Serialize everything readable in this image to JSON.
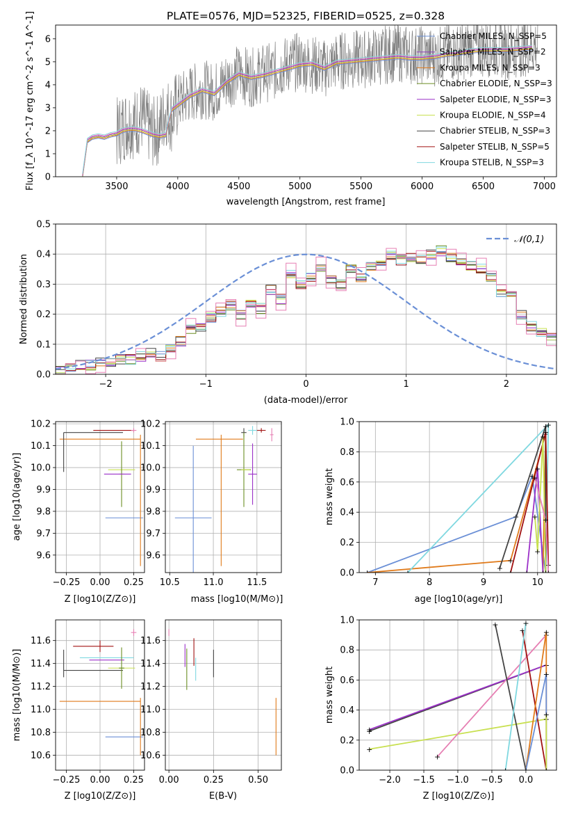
{
  "title": "PLATE=0576, MJD=52325, FIBERID=0525, z=0.328",
  "colors": {
    "Chabrier MILES": "#6a8fd6",
    "Salpeter MILES": "#8c3fb8",
    "Kroupa MILES": "#e07a1a",
    "Chabrier ELODIE": "#6b8e23",
    "Salpeter ELODIE": "#9b30c8",
    "Kroupa ELODIE": "#c8e050",
    "Chabrier STELIB": "#444444",
    "Salpeter STELIB": "#a01010",
    "Kroupa STELIB": "#7fd8e0",
    "Pink": "#e67fb3",
    "Spectrum": "#808080"
  },
  "chart_data": [
    {
      "type": "line",
      "title": "PLATE=0576, MJD=52325, FIBERID=0525, z=0.328",
      "xlabel": "wavelength [Angstrom, rest frame]",
      "ylabel": "Flux [f_λ 10^-17 erg cm^-2 s^-1 A^-1]",
      "xlim": [
        3000,
        7100
      ],
      "ylim": [
        0,
        6.6
      ],
      "xticks": [
        3500,
        4000,
        4500,
        5000,
        5500,
        6000,
        6500,
        7000
      ],
      "yticks": [
        0,
        1,
        2,
        3,
        4,
        5,
        6
      ],
      "legend": "top-right",
      "legend_entries": [
        "Chabrier MILES, N_SSP=5",
        "Salpeter MILES, N_SSP=2",
        "Kroupa MILES, N_SSP=3",
        "Chabrier ELODIE, N_SSP=3",
        "Salpeter ELODIE, N_SSP=3",
        "Kroupa ELODIE, N_SSP=4",
        "Chabrier STELIB, N_SSP=3",
        "Salpeter STELIB, N_SSP=5",
        "Kroupa STELIB, N_SSP=3"
      ],
      "spectrum": {
        "x": [
          3220,
          3260,
          3300,
          3350,
          3400,
          3450,
          3500,
          3550,
          3600,
          3650,
          3700,
          3750,
          3800,
          3850,
          3900,
          3950,
          4000,
          4100,
          4200,
          4300,
          4400,
          4500,
          4600,
          4700,
          4800,
          4900,
          5000,
          5100,
          5200,
          5300,
          5400,
          5500,
          5600,
          5700,
          5800,
          5900,
          6000,
          6100,
          6200,
          6300,
          6400,
          6500,
          6600,
          6700,
          6800,
          6900
        ],
        "y": [
          0.0,
          1.5,
          1.7,
          1.75,
          1.7,
          1.8,
          1.85,
          2.2,
          2.4,
          2.3,
          2.6,
          2.2,
          1.9,
          2.1,
          2.9,
          2.6,
          3.2,
          3.6,
          3.8,
          3.7,
          4.2,
          4.5,
          4.3,
          4.5,
          4.6,
          4.9,
          5.0,
          4.9,
          4.7,
          5.0,
          5.1,
          5.1,
          5.2,
          5.3,
          5.4,
          5.3,
          5.3,
          5.2,
          5.4,
          5.4,
          5.6,
          5.6,
          5.6,
          5.5,
          5.6,
          5.7
        ]
      },
      "models": {
        "x": [
          3220,
          3260,
          3300,
          3350,
          3400,
          3450,
          3500,
          3550,
          3600,
          3650,
          3700,
          3750,
          3800,
          3850,
          3900,
          3950,
          4000,
          4100,
          4200,
          4300,
          4400,
          4500,
          4600,
          4700,
          4800,
          4900,
          5000,
          5100,
          5200,
          5300,
          5400,
          5500,
          5600,
          5700,
          5800,
          5900,
          6000,
          6100,
          6200,
          6300,
          6400,
          6500,
          6600,
          6700,
          6800,
          6900
        ],
        "y": [
          0.0,
          1.55,
          1.7,
          1.75,
          1.7,
          1.8,
          1.85,
          2.0,
          2.05,
          2.05,
          2.0,
          1.9,
          1.8,
          1.75,
          1.8,
          2.9,
          3.1,
          3.5,
          3.75,
          3.6,
          4.1,
          4.45,
          4.3,
          4.4,
          4.55,
          4.7,
          4.85,
          4.9,
          4.7,
          4.95,
          5.0,
          5.05,
          5.1,
          5.15,
          5.2,
          5.15,
          5.15,
          5.2,
          5.3,
          5.35,
          5.45,
          5.5,
          5.5,
          5.5,
          5.55,
          5.6
        ]
      }
    },
    {
      "type": "histogram",
      "xlabel": "(data-model)/error",
      "ylabel": "Normed distribution",
      "xlim": [
        -2.5,
        2.5
      ],
      "ylim": [
        0,
        0.5
      ],
      "xticks": [
        -2,
        -1,
        0,
        1,
        2
      ],
      "yticks": [
        0.0,
        0.1,
        0.2,
        0.3,
        0.4,
        0.5
      ],
      "bin_width": 0.1,
      "legend": "top-right",
      "legend_entries": [
        "𝒩(0,1)"
      ],
      "histogram": {
        "bin_edges_start": -2.5,
        "values": [
          0.01,
          0.02,
          0.03,
          0.03,
          0.04,
          0.04,
          0.05,
          0.05,
          0.06,
          0.07,
          0.06,
          0.09,
          0.11,
          0.15,
          0.16,
          0.19,
          0.21,
          0.23,
          0.2,
          0.24,
          0.22,
          0.28,
          0.25,
          0.33,
          0.3,
          0.32,
          0.36,
          0.32,
          0.3,
          0.35,
          0.32,
          0.36,
          0.37,
          0.4,
          0.38,
          0.39,
          0.38,
          0.4,
          0.41,
          0.39,
          0.37,
          0.36,
          0.35,
          0.32,
          0.27,
          0.26,
          0.2,
          0.16,
          0.14,
          0.12,
          0.1,
          0.08,
          0.07,
          0.06,
          0.05,
          0.04,
          0.03,
          0.02,
          0.02,
          0.01
        ]
      }
    },
    {
      "type": "errorbar",
      "xlabel": "Z [log10(Z/Z⊙)]",
      "ylabel": "age [log10(age/yr)]",
      "xlim": [
        -0.33,
        0.33
      ],
      "ylim": [
        9.52,
        10.21
      ],
      "xticks": [
        -0.25,
        0.0,
        0.25
      ],
      "yticks": [
        9.6,
        9.7,
        9.8,
        9.9,
        10.0,
        10.1,
        10.2
      ],
      "points": [
        {
          "c": "Chabrier MILES",
          "x": 0.18,
          "y": 9.77,
          "xerr": 0.14,
          "yerr": 0.0
        },
        {
          "c": "Kroupa MILES",
          "x": 0.0,
          "y": 10.13,
          "xerr": 0.3,
          "yerr": 0.0
        },
        {
          "c": "Kroupa MILES",
          "x": 0.3,
          "y": 9.85,
          "xerr": 0.0,
          "yerr": 0.3
        },
        {
          "c": "Salpeter STELIB",
          "x": 0.1,
          "y": 10.17,
          "xerr": 0.15,
          "yerr": 0.0
        },
        {
          "c": "Chabrier STELIB",
          "x": -0.05,
          "y": 10.16,
          "xerr": 0.22,
          "yerr": 0.0
        },
        {
          "c": "Chabrier STELIB",
          "x": -0.27,
          "y": 10.07,
          "xerr": 0.0,
          "yerr": 0.09
        },
        {
          "c": "Kroupa ELODIE",
          "x": 0.16,
          "y": 9.99,
          "xerr": 0.1,
          "yerr": 0.0
        },
        {
          "c": "Chabrier ELODIE",
          "x": 0.16,
          "y": 9.97,
          "xerr": 0.02,
          "yerr": 0.15
        },
        {
          "c": "Salpeter ELODIE",
          "x": 0.13,
          "y": 9.97,
          "xerr": 0.1,
          "yerr": 0.0
        },
        {
          "c": "Pink",
          "x": 0.25,
          "y": 10.17,
          "xerr": 0.02,
          "yerr": 0.01
        }
      ]
    },
    {
      "type": "errorbar",
      "xlabel": "mass [log10(M/M⊙)]",
      "ylabel": "",
      "xlim": [
        10.45,
        11.78
      ],
      "ylim": [
        9.52,
        10.21
      ],
      "xticks": [
        10.5,
        11.0,
        11.5
      ],
      "yticks": [
        9.6,
        9.7,
        9.8,
        9.9,
        10.0,
        10.1,
        10.2
      ],
      "points": [
        {
          "c": "Chabrier MILES",
          "x": 10.77,
          "y": 9.77,
          "xerr": 0.21,
          "yerr": 0.33
        },
        {
          "c": "Kroupa MILES",
          "x": 11.07,
          "y": 10.13,
          "xerr": 0.27,
          "yerr": 0.0
        },
        {
          "c": "Kroupa MILES",
          "x": 11.09,
          "y": 9.85,
          "xerr": 0.0,
          "yerr": 0.3
        },
        {
          "c": "Chabrier STELIB",
          "x": 11.35,
          "y": 10.16,
          "xerr": 0.03,
          "yerr": 0.02
        },
        {
          "c": "Salpeter STELIB",
          "x": 11.55,
          "y": 10.17,
          "xerr": 0.05,
          "yerr": 0.01
        },
        {
          "c": "Chabrier ELODIE",
          "x": 11.35,
          "y": 9.99,
          "xerr": 0.08,
          "yerr": 0.17
        },
        {
          "c": "Kroupa ELODIE",
          "x": 11.37,
          "y": 9.99,
          "xerr": 0.05,
          "yerr": 0.0
        },
        {
          "c": "Salpeter ELODIE",
          "x": 11.45,
          "y": 9.97,
          "xerr": 0.05,
          "yerr": 0.14
        },
        {
          "c": "Kroupa STELIB",
          "x": 11.45,
          "y": 10.17,
          "xerr": 0.05,
          "yerr": 0.02
        },
        {
          "c": "Pink",
          "x": 11.67,
          "y": 10.15,
          "xerr": 0.02,
          "yerr": 0.03
        }
      ]
    },
    {
      "type": "line",
      "xlabel": "age [log10(age/yr)]",
      "ylabel": "mass weight",
      "xlim": [
        6.7,
        10.35
      ],
      "ylim": [
        0,
        1
      ],
      "xticks": [
        7,
        8,
        9,
        10
      ],
      "yticks": [
        0.0,
        0.2,
        0.4,
        0.6,
        0.8,
        1.0
      ],
      "series": [
        {
          "c": "Chabrier MILES",
          "x": [
            6.85,
            9.6,
            9.9,
            10.15
          ],
          "y": [
            0.0,
            0.37,
            0.64,
            0.0
          ]
        },
        {
          "c": "Kroupa MILES",
          "x": [
            6.85,
            9.5,
            10.15,
            10.1
          ],
          "y": [
            0.0,
            0.08,
            0.92,
            0.0
          ]
        },
        {
          "c": "Kroupa STELIB",
          "x": [
            7.6,
            10.2,
            10.15
          ],
          "y": [
            0.0,
            0.98,
            0.0
          ]
        },
        {
          "c": "Chabrier STELIB",
          "x": [
            9.3,
            10.15,
            10.15
          ],
          "y": [
            0.03,
            0.97,
            0.0
          ]
        },
        {
          "c": "Salpeter STELIB",
          "x": [
            9.5,
            10.15,
            10.2
          ],
          "y": [
            0.0,
            0.93,
            0.05
          ]
        },
        {
          "c": "Salpeter ELODIE",
          "x": [
            9.8,
            10.0,
            10.1
          ],
          "y": [
            0.0,
            0.69,
            0.0
          ]
        },
        {
          "c": "Kroupa ELODIE",
          "x": [
            9.95,
            10.0,
            10.1,
            10.15
          ],
          "y": [
            0.37,
            0.14,
            0.9,
            0.0
          ]
        },
        {
          "c": "Pink",
          "x": [
            9.95,
            10.15,
            10.2
          ],
          "y": [
            0.63,
            0.35,
            0.0
          ]
        }
      ]
    },
    {
      "type": "errorbar",
      "xlabel": "Z [log10(Z/Z⊙)]",
      "ylabel": "mass [log10(M/M⊙)]",
      "xlim": [
        -0.33,
        0.33
      ],
      "ylim": [
        10.47,
        11.78
      ],
      "xticks": [
        -0.25,
        0.0,
        0.25
      ],
      "yticks": [
        10.6,
        10.8,
        11.0,
        11.2,
        11.4,
        11.6
      ],
      "points": [
        {
          "c": "Chabrier MILES",
          "x": 0.18,
          "y": 10.76,
          "xerr": 0.14,
          "yerr": 0.0
        },
        {
          "c": "Kroupa MILES",
          "x": 0.0,
          "y": 11.07,
          "xerr": 0.3,
          "yerr": 0.0
        },
        {
          "c": "Kroupa MILES",
          "x": 0.3,
          "y": 10.85,
          "xerr": 0.0,
          "yerr": 0.25
        },
        {
          "c": "Salpeter STELIB",
          "x": -0.05,
          "y": 11.55,
          "xerr": 0.15,
          "yerr": 0.0
        },
        {
          "c": "Salpeter STELIB",
          "x": 0.0,
          "y": 11.55,
          "xerr": 0.0,
          "yerr": 0.05
        },
        {
          "c": "Chabrier STELIB",
          "x": -0.05,
          "y": 11.34,
          "xerr": 0.22,
          "yerr": 0.0
        },
        {
          "c": "Chabrier STELIB",
          "x": -0.27,
          "y": 11.4,
          "xerr": 0.0,
          "yerr": 0.12
        },
        {
          "c": "Kroupa STELIB",
          "x": 0.05,
          "y": 11.45,
          "xerr": 0.2,
          "yerr": 0.0
        },
        {
          "c": "Salpeter ELODIE",
          "x": 0.05,
          "y": 11.43,
          "xerr": 0.13,
          "yerr": 0.0
        },
        {
          "c": "Kroupa ELODIE",
          "x": 0.16,
          "y": 11.36,
          "xerr": 0.1,
          "yerr": 0.0
        },
        {
          "c": "Chabrier ELODIE",
          "x": 0.16,
          "y": 11.36,
          "xerr": 0.02,
          "yerr": 0.18
        },
        {
          "c": "Pink",
          "x": 0.25,
          "y": 11.67,
          "xerr": 0.02,
          "yerr": 0.03
        }
      ]
    },
    {
      "type": "errorbar",
      "xlabel": "E(B-V)",
      "ylabel": "",
      "xlim": [
        -0.02,
        0.63
      ],
      "ylim": [
        10.47,
        11.78
      ],
      "xticks": [
        0.0,
        0.25,
        0.5
      ],
      "yticks": [
        10.6,
        10.8,
        11.0,
        11.2,
        11.4,
        11.6
      ],
      "points": [
        {
          "c": "Kroupa MILES",
          "x": 0.6,
          "y": 10.85,
          "xerr": 0.0,
          "yerr": 0.25
        },
        {
          "c": "Chabrier STELIB",
          "x": 0.25,
          "y": 11.4,
          "xerr": 0.0,
          "yerr": 0.12
        },
        {
          "c": "Salpeter STELIB",
          "x": 0.14,
          "y": 11.5,
          "xerr": 0.0,
          "yerr": 0.12
        },
        {
          "c": "Chabrier ELODIE",
          "x": 0.1,
          "y": 11.35,
          "xerr": 0.0,
          "yerr": 0.18
        },
        {
          "c": "Salpeter ELODIE",
          "x": 0.09,
          "y": 11.47,
          "xerr": 0.0,
          "yerr": 0.1
        },
        {
          "c": "Kroupa STELIB",
          "x": 0.15,
          "y": 11.35,
          "xerr": 0.0,
          "yerr": 0.1
        },
        {
          "c": "Pink",
          "x": 0.0,
          "y": 11.67,
          "xerr": 0.0,
          "yerr": 0.03
        }
      ]
    },
    {
      "type": "line",
      "xlabel": "Z [log10(Z/Z⊙)]",
      "ylabel": "mass weight",
      "xlim": [
        -2.45,
        0.45
      ],
      "ylim": [
        0,
        1
      ],
      "xticks": [
        -2.0,
        -1.5,
        -1.0,
        -0.5,
        0.0
      ],
      "yticks": [
        0.0,
        0.2,
        0.4,
        0.6,
        0.8,
        1.0
      ],
      "series": [
        {
          "c": "Chabrier STELIB",
          "x": [
            -2.3,
            0.3
          ],
          "y": [
            0.26,
            0.7
          ]
        },
        {
          "c": "Salpeter ELODIE",
          "x": [
            -2.3,
            0.3
          ],
          "y": [
            0.27,
            0.7
          ]
        },
        {
          "c": "Kroupa ELODIE",
          "x": [
            -2.3,
            0.3
          ],
          "y": [
            0.14,
            0.34
          ]
        },
        {
          "c": "Pink",
          "x": [
            -1.3,
            0.3
          ],
          "y": [
            0.09,
            0.9
          ]
        },
        {
          "c": "Chabrier STELIB",
          "x": [
            -0.45,
            0.0
          ],
          "y": [
            0.97,
            0.0
          ]
        },
        {
          "c": "Salpeter STELIB",
          "x": [
            -0.05,
            0.3
          ],
          "y": [
            0.93,
            0.0
          ]
        },
        {
          "c": "Kroupa STELIB",
          "x": [
            -0.3,
            0.0
          ],
          "y": [
            0.0,
            0.98
          ]
        },
        {
          "c": "Kroupa MILES",
          "x": [
            0.0,
            0.3,
            0.3
          ],
          "y": [
            0.0,
            0.92,
            0.0
          ]
        },
        {
          "c": "Chabrier MILES",
          "x": [
            0.0,
            0.3,
            0.3
          ],
          "y": [
            0.0,
            0.64,
            0.0
          ]
        },
        {
          "c": "Kroupa ELODIE",
          "x": [
            0.3,
            0.3
          ],
          "y": [
            0.37,
            0.0
          ]
        }
      ]
    }
  ]
}
